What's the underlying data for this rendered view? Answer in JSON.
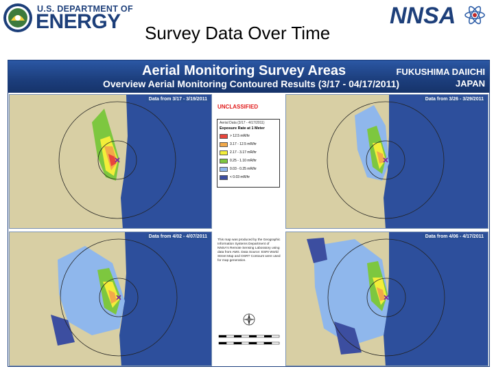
{
  "header": {
    "doe_dept": "U.S. DEPARTMENT OF",
    "doe_energy": "ENERGY",
    "slide_title": "Survey Data Over Time",
    "nnsa_logo_text": "NNSA"
  },
  "poster": {
    "title": "Aerial Monitoring Survey Areas",
    "subtitle": "Overview Aerial Monitoring Contoured Results (3/17 - 04/17/2011)",
    "site": "FUKUSHIMA DAIICHI",
    "country": "JAPAN",
    "classification": "UNCLASSIFIED",
    "maps": [
      {
        "date_label": "Data from 3/17 - 3/19/2011"
      },
      {
        "date_label": "Data from 3/26 - 3/29/2011"
      },
      {
        "date_label": "Data from 4/02 - 4/07/2011"
      },
      {
        "date_label": "Data from 4/06 - 4/17/2011"
      }
    ],
    "legend": {
      "date_line": "Aerial Data (3/17 - 4/17/2011)",
      "header": "Exposure Rate at 1 Meter",
      "entries": [
        {
          "label": "> 12.5 mR/hr",
          "color": "#e8453c"
        },
        {
          "label": "3.17 - 12.5 mR/hr",
          "color": "#f2a94a"
        },
        {
          "label": "2.17 - 3.17 mR/hr",
          "color": "#f3ee3a"
        },
        {
          "label": "0.25 - 1.10 mR/hr",
          "color": "#7dc73f"
        },
        {
          "label": "0.03 - 0.25 mR/hr",
          "color": "#8fb7ec"
        },
        {
          "label": "< 0.03 mR/hr",
          "color": "#3c4ea0"
        }
      ]
    },
    "note": "This map was produced by the Geographic Information Systems Department of NNSA's Remote Sensing Laboratory using data from AMS. Data Source: ESRI World Street Map and OSRT Contours were used for map generation."
  },
  "colors": {
    "navy": "#1c3e7c",
    "ocean": "#2d4f9c",
    "land": "#d8cfa4"
  }
}
